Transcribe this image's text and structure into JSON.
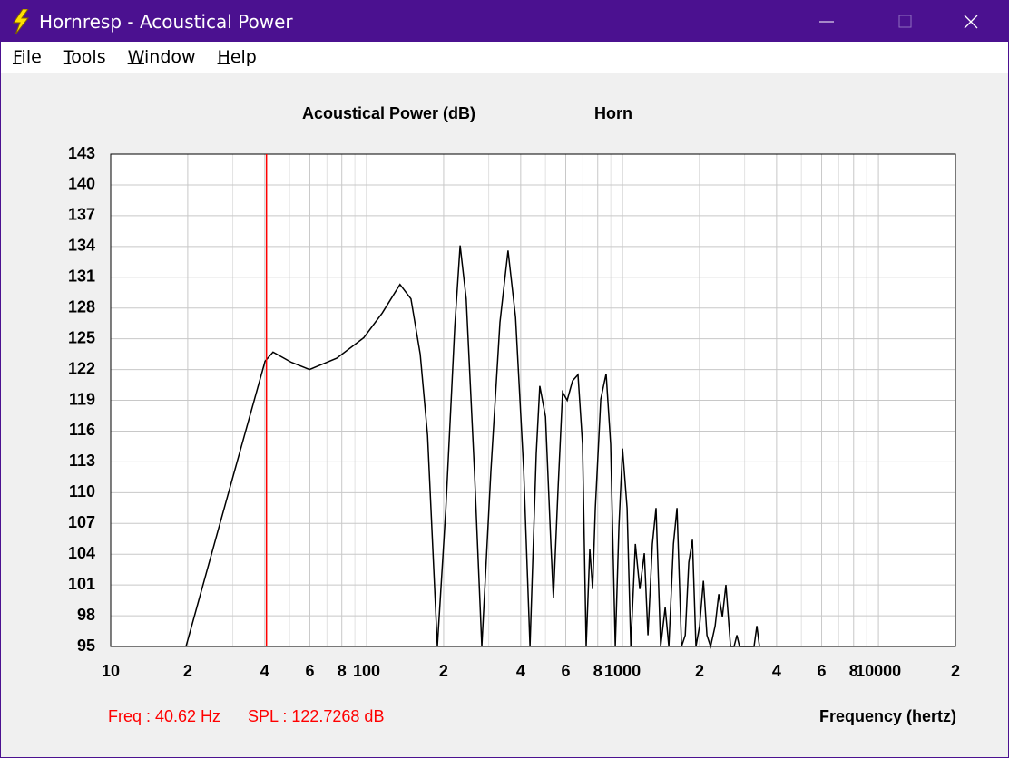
{
  "window": {
    "title": "Hornresp - Acoustical Power"
  },
  "menu": [
    "File",
    "Tools",
    "Window",
    "Help"
  ],
  "chart_data": {
    "type": "line",
    "title": "Acoustical Power (dB)",
    "subtitle": "Horn",
    "x_label": "Frequency (hertz)",
    "x_log": true,
    "grid": true,
    "xlim": [
      10,
      20000
    ],
    "ylim": [
      95,
      143
    ],
    "yticks": [
      95,
      98,
      101,
      104,
      107,
      110,
      113,
      116,
      119,
      122,
      125,
      128,
      131,
      134,
      137,
      140,
      143
    ],
    "xticks": [
      10,
      {
        "value": 20,
        "label": "2"
      },
      {
        "value": 40,
        "label": "4"
      },
      {
        "value": 60,
        "label": "6"
      },
      {
        "value": 80,
        "label": "8"
      },
      100,
      {
        "value": 200,
        "label": "2"
      },
      {
        "value": 400,
        "label": "4"
      },
      {
        "value": 600,
        "label": "6"
      },
      {
        "value": 800,
        "label": "8"
      },
      1000,
      {
        "value": 2000,
        "label": "2"
      },
      {
        "value": 4000,
        "label": "4"
      },
      {
        "value": 6000,
        "label": "6"
      },
      {
        "value": 8000,
        "label": "8"
      },
      10000,
      {
        "value": 20000,
        "label": "2"
      }
    ],
    "xminorticks": [
      30,
      50,
      70,
      90,
      300,
      500,
      700,
      900,
      3000,
      5000,
      7000,
      9000
    ],
    "cursor": {
      "x": 40.62,
      "color": "#ff0000"
    },
    "annotations": [
      "Freq : 40.62 Hz",
      "SPL : 122.7268 dB"
    ],
    "x": [
      19.7,
      26.4,
      32.4,
      40.1,
      43.1,
      50.8,
      59.8,
      76.4,
      97.5,
      115,
      135,
      149,
      162,
      173,
      186,
      189,
      204,
      221,
      232,
      245,
      264,
      282,
      306,
      332,
      357,
      382,
      411,
      435,
      460,
      475,
      500,
      525,
      537,
      560,
      583,
      608,
      638,
      670,
      698,
      721,
      745,
      764,
      783,
      822,
      863,
      899,
      937,
      968,
      1000,
      1042,
      1077,
      1122,
      1168,
      1217,
      1257,
      1309,
      1352,
      1409,
      1468,
      1517,
      1581,
      1633,
      1700,
      1758,
      1816,
      1875,
      1936,
      2000,
      2070,
      2138,
      2208,
      2301,
      2377,
      2455,
      2535,
      2642,
      2729,
      2799,
      2866,
      3266,
      3350,
      3430
    ],
    "series": [
      {
        "name": "Horn",
        "color": "#000000",
        "values": [
          95,
          106.5,
          114.5,
          122.8,
          123.7,
          122.7,
          122.0,
          123.1,
          125.1,
          127.5,
          130.3,
          128.9,
          123.5,
          115.6,
          98.8,
          95,
          108.5,
          126.2,
          134.1,
          128.9,
          112.1,
          95,
          112.1,
          126.6,
          133.6,
          127.1,
          112.1,
          95,
          113.8,
          120.4,
          117.4,
          105.0,
          99.7,
          110.3,
          119.8,
          119.0,
          120.9,
          121.5,
          114.7,
          95,
          104.5,
          100.6,
          108.5,
          119.1,
          121.6,
          114.7,
          95,
          106.7,
          114.3,
          108.5,
          95,
          105.0,
          100.6,
          104.1,
          96.1,
          105.0,
          108.5,
          95,
          98.8,
          95,
          105.0,
          108.5,
          95,
          96.1,
          103.2,
          105.4,
          95,
          97.0,
          101.4,
          96.1,
          95,
          97.0,
          100.1,
          97.9,
          101.0,
          95,
          95,
          96.1,
          95,
          95,
          97.0,
          95
        ]
      }
    ]
  }
}
